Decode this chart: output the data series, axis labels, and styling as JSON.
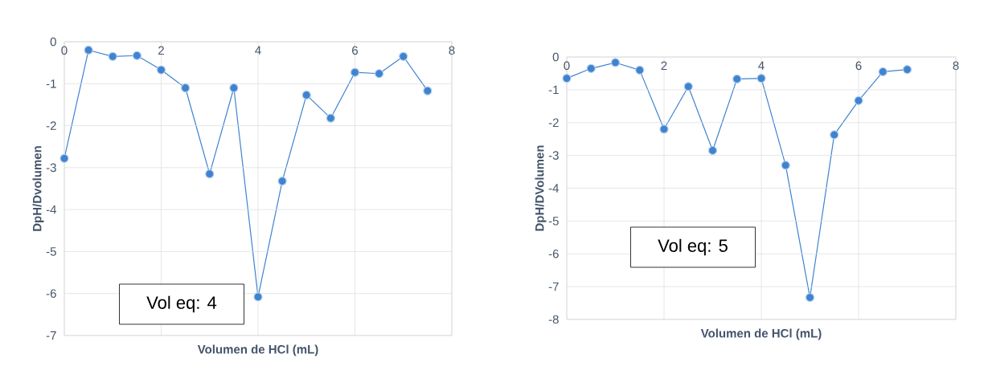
{
  "chart_data": [
    {
      "type": "line",
      "xlabel": "Volumen de HCl (mL)",
      "ylabel": "DpH/Dvolumen",
      "annotations": [
        "Vol eq: 4"
      ],
      "x": [
        0,
        0.5,
        1,
        1.5,
        2,
        2.5,
        3,
        3.5,
        4,
        4.5,
        5,
        5.5,
        6,
        6.5,
        7,
        7.5
      ],
      "values": [
        -2.78,
        -0.2,
        -0.35,
        -0.33,
        -0.67,
        -1.1,
        -3.15,
        -1.1,
        -6.08,
        -3.32,
        -1.27,
        -1.82,
        -0.73,
        -0.76,
        -0.35,
        -1.17
      ],
      "color": "#3f83d0",
      "xlim": [
        0,
        8
      ],
      "ylim": [
        -7,
        0
      ],
      "xticks": [
        0,
        2,
        4,
        6,
        8
      ],
      "yticks": [
        -7,
        -6,
        -5,
        -4,
        -3,
        -2,
        -1,
        0
      ],
      "grid": true,
      "marker": "circle",
      "line_style": "solid"
    },
    {
      "type": "line",
      "xlabel": "Volumen de HCl (mL)",
      "ylabel": "DpH/DVolumen",
      "annotations": [
        "Vol eq: 5"
      ],
      "x": [
        0,
        0.5,
        1,
        1.5,
        2,
        2.5,
        3,
        3.5,
        4,
        4.5,
        5,
        5.5,
        6,
        6.5,
        7
      ],
      "values": [
        -0.65,
        -0.35,
        -0.17,
        -0.4,
        -2.2,
        -0.9,
        -2.85,
        -0.67,
        -0.65,
        -3.3,
        -7.33,
        -2.37,
        -1.33,
        -0.45,
        -0.38
      ],
      "color": "#3f83d0",
      "xlim": [
        0,
        8
      ],
      "ylim": [
        -8,
        0
      ],
      "xticks": [
        0,
        2,
        4,
        6,
        8
      ],
      "yticks": [
        -8,
        -7,
        -6,
        -5,
        -4,
        -3,
        -2,
        -1,
        0
      ],
      "grid": true,
      "marker": "circle",
      "line_style": "solid"
    }
  ]
}
